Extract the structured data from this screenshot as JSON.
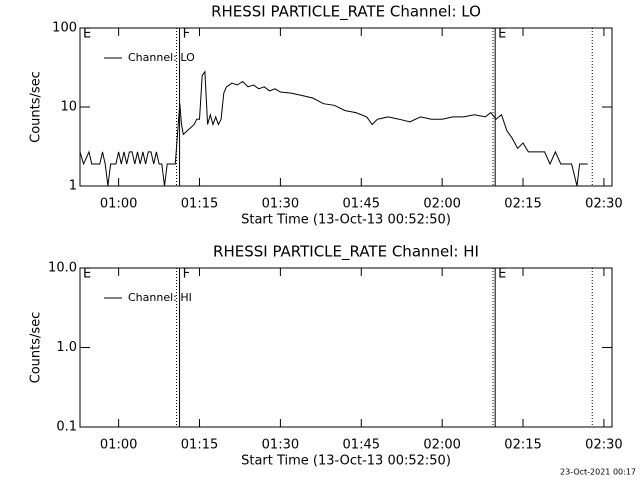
{
  "charts": [
    {
      "chart_data": {
        "type": "line",
        "title": "RHESSI PARTICLE_RATE Channel: LO",
        "x_label": "Start Time (13-Oct-13 00:52:50)",
        "y_label": "Counts/sec",
        "log_y": true,
        "legend": "upper left",
        "xlim": [
          "00:52:50",
          "02:31:30"
        ],
        "xticks": [
          "01:00",
          "01:15",
          "01:30",
          "01:45",
          "02:00",
          "02:15",
          "02:30"
        ],
        "ylim": [
          1,
          100
        ],
        "yticks": [
          1,
          10,
          100
        ],
        "markers": [
          {
            "x": "00:52:50",
            "label": "E"
          },
          {
            "x": "01:10:44",
            "style": "dotted"
          },
          {
            "x": "01:11:18",
            "label": "F",
            "style": "solid"
          },
          {
            "x": "02:09:26",
            "style": "dotted"
          },
          {
            "x": "02:09:50",
            "label": "E",
            "style": "solid"
          },
          {
            "x": "02:27:50",
            "style": "dotted"
          }
        ],
        "x": [
          "00:52:50",
          "00:53:30",
          "00:54:30",
          "00:55:00",
          "00:56:30",
          "00:57:00",
          "00:57:30",
          "00:58:00",
          "00:58:30",
          "00:59:30",
          "01:00:00",
          "01:00:30",
          "01:01:00",
          "01:01:30",
          "01:02:00",
          "01:02:30",
          "01:03:00",
          "01:03:30",
          "01:04:00",
          "01:04:30",
          "01:05:00",
          "01:05:30",
          "01:06:00",
          "01:06:30",
          "01:07:00",
          "01:07:30",
          "01:08:00",
          "01:08:30",
          "01:09:00",
          "01:10:30",
          "01:11:00",
          "01:11:20",
          "01:11:40",
          "01:12:00",
          "01:13:00",
          "01:14:00",
          "01:14:30",
          "01:15:00",
          "01:15:30",
          "01:16:00",
          "01:16:30",
          "01:17:00",
          "01:17:30",
          "01:18:00",
          "01:18:30",
          "01:19:00",
          "01:19:30",
          "01:20:00",
          "01:21:00",
          "01:22:00",
          "01:23:00",
          "01:24:00",
          "01:25:00",
          "01:26:00",
          "01:27:00",
          "01:28:00",
          "01:29:00",
          "01:30:00",
          "01:32:00",
          "01:34:00",
          "01:36:00",
          "01:38:00",
          "01:40:00",
          "01:42:00",
          "01:44:00",
          "01:46:00",
          "01:47:00",
          "01:48:00",
          "01:50:00",
          "01:52:00",
          "01:54:00",
          "01:56:00",
          "01:58:00",
          "02:00:00",
          "02:02:00",
          "02:04:00",
          "02:06:00",
          "02:08:00",
          "02:09:00",
          "02:10:00",
          "02:11:00",
          "02:12:00",
          "02:13:00",
          "02:14:00",
          "02:15:00",
          "02:16:00",
          "02:19:00",
          "02:20:00",
          "02:21:00",
          "02:22:00",
          "02:24:00",
          "02:25:00",
          "02:25:30",
          "02:27:00"
        ],
        "series": [
          {
            "name": "Channel: LO",
            "color": "#000000",
            "values": [
              2.7,
              1.9,
              2.7,
              1.9,
              1.9,
              2.7,
              1.9,
              1.0,
              1.9,
              1.9,
              2.7,
              1.9,
              2.7,
              1.9,
              2.7,
              2.7,
              1.9,
              2.7,
              1.9,
              2.7,
              1.9,
              2.7,
              2.7,
              1.9,
              2.7,
              1.9,
              1.9,
              1.0,
              1.9,
              1.9,
              5.5,
              11,
              6,
              4.5,
              5.2,
              6,
              7,
              7,
              25,
              28,
              6,
              8,
              6,
              7.5,
              6,
              7,
              15,
              18,
              20,
              19,
              21,
              18,
              19,
              17,
              18,
              16,
              17,
              15.5,
              15,
              14,
              13,
              11,
              10.5,
              9,
              8.5,
              7.5,
              6,
              7,
              7.5,
              7,
              6.5,
              7.5,
              7,
              7,
              7.5,
              7.5,
              8,
              7.5,
              8.5,
              7,
              8,
              5,
              4,
              3,
              3.5,
              2.7,
              2.7,
              1.9,
              2.7,
              1.9,
              1.9,
              1.0,
              1.9,
              1.9
            ]
          }
        ]
      }
    },
    {
      "chart_data": {
        "type": "line",
        "title": "RHESSI PARTICLE_RATE Channel: HI",
        "x_label": "Start Time (13-Oct-13 00:52:50)",
        "y_label": "Counts/sec",
        "log_y": true,
        "legend": "upper left",
        "xlim": [
          "00:52:50",
          "02:31:30"
        ],
        "xticks": [
          "01:00",
          "01:15",
          "01:30",
          "01:45",
          "02:00",
          "02:15",
          "02:30"
        ],
        "ylim": [
          0.1,
          10
        ],
        "yticks": [
          0.1,
          {
            "value": 1,
            "label": "1.0"
          },
          {
            "value": 10,
            "label": "10.0"
          }
        ],
        "markers": [
          {
            "x": "00:52:50",
            "label": "E"
          },
          {
            "x": "01:10:44",
            "style": "dotted"
          },
          {
            "x": "01:11:18",
            "label": "F",
            "style": "solid"
          },
          {
            "x": "02:09:26",
            "style": "dotted"
          },
          {
            "x": "02:09:50",
            "label": "E",
            "style": "solid"
          },
          {
            "x": "02:27:50",
            "style": "dotted"
          }
        ],
        "x": [],
        "series": [
          {
            "name": "Channel: HI",
            "color": "#000000",
            "values": []
          }
        ]
      }
    }
  ],
  "footer": "23-Oct-2021 00:17"
}
